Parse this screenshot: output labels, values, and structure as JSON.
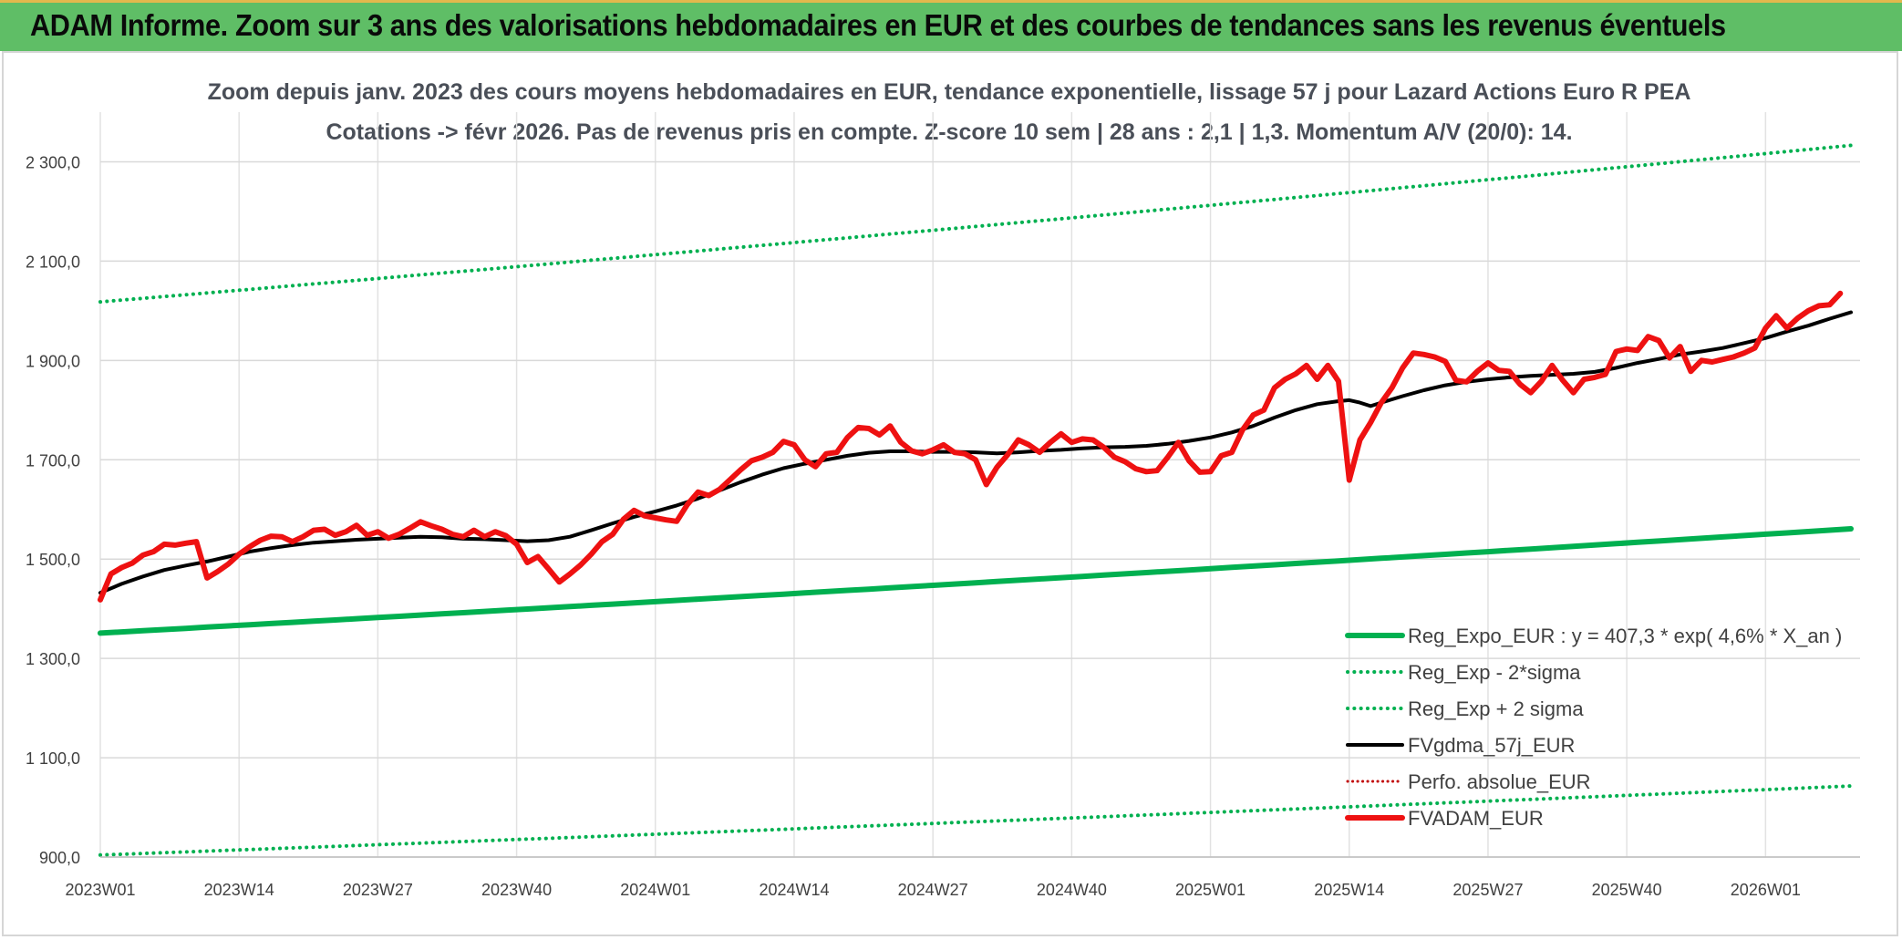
{
  "page": {
    "banner_title": "ADAM Informe. Zoom sur 3 ans des valorisations hebdomadaires en EUR et des courbes de tendances sans les revenus éventuels"
  },
  "chart_data": {
    "type": "line",
    "title_line1": "Zoom depuis janv. 2023 des cours moyens hebdomadaires en EUR, tendance exponentielle, lissage 57 j pour Lazard Actions Euro R PEA",
    "title_line2": "Cotations -> févr 2026. Pas de revenus pris en compte. Z-score 10 sem | 28 ans : 2,1 | 1,3. Momentum A/V (20/0): 14.",
    "ylim": [
      900,
      2400
    ],
    "y_ticks": [
      900,
      1100,
      1300,
      1500,
      1700,
      1900,
      2100,
      2300
    ],
    "y_tick_labels": [
      "900,0",
      "1 100,0",
      "1 300,0",
      "1 500,0",
      "1 700,0",
      "1 900,0",
      "2 100,0",
      "2 300,0"
    ],
    "x_tick_labels": [
      "2023W01",
      "2023W14",
      "2023W27",
      "2023W40",
      "2024W01",
      "2024W14",
      "2024W27",
      "2024W40",
      "2025W01",
      "2025W14",
      "2025W27",
      "2025W40",
      "2026W01"
    ],
    "x_tick_weeks": [
      0,
      13,
      26,
      39,
      52,
      65,
      78,
      91,
      104,
      117,
      130,
      143,
      156
    ],
    "x_range_weeks": [
      0,
      164
    ],
    "grid": true,
    "legend_position": "bottom-right",
    "legend": [
      {
        "label": "Reg_Expo_EUR : y = 407,3 * exp( 4,6% *  X_an )",
        "series": "reg_expo"
      },
      {
        "label": "Reg_Exp - 2*sigma",
        "series": "reg_minus"
      },
      {
        "label": "Reg_Exp + 2 sigma",
        "series": "reg_plus"
      },
      {
        "label": "FVgdma_57j_EUR",
        "series": "gdma"
      },
      {
        "label": "Perfo. absolue_EUR",
        "series": "perfo"
      },
      {
        "label": "FVADAM_EUR",
        "series": "fvadam"
      }
    ],
    "series": [
      {
        "name": "Reg_Expo_EUR : y = 407,3 * exp( 4,6% *  X_an )",
        "key": "reg_expo",
        "color": "#00b050",
        "style": "solid",
        "width": 6,
        "start": 1351,
        "end": 1561
      },
      {
        "name": "Reg_Exp - 2*sigma",
        "key": "reg_minus",
        "color": "#00b050",
        "style": "dotted",
        "width": 4,
        "start": 904,
        "end": 1043
      },
      {
        "name": "Reg_Exp + 2 sigma",
        "key": "reg_plus",
        "color": "#00b050",
        "style": "dotted",
        "width": 4,
        "start": 2018,
        "end": 2333
      },
      {
        "name": "FVgdma_57j_EUR",
        "key": "gdma",
        "color": "#000000",
        "style": "solid",
        "width": 4,
        "points": [
          [
            0,
            1432
          ],
          [
            2,
            1450
          ],
          [
            4,
            1465
          ],
          [
            6,
            1478
          ],
          [
            8,
            1487
          ],
          [
            10,
            1495
          ],
          [
            12,
            1505
          ],
          [
            14,
            1515
          ],
          [
            16,
            1522
          ],
          [
            18,
            1528
          ],
          [
            20,
            1533
          ],
          [
            22,
            1536
          ],
          [
            24,
            1539
          ],
          [
            26,
            1541
          ],
          [
            28,
            1543
          ],
          [
            30,
            1545
          ],
          [
            32,
            1544
          ],
          [
            34,
            1541
          ],
          [
            36,
            1540
          ],
          [
            38,
            1538
          ],
          [
            40,
            1536
          ],
          [
            42,
            1538
          ],
          [
            44,
            1545
          ],
          [
            46,
            1558
          ],
          [
            48,
            1572
          ],
          [
            50,
            1585
          ],
          [
            52,
            1596
          ],
          [
            54,
            1608
          ],
          [
            56,
            1622
          ],
          [
            58,
            1638
          ],
          [
            60,
            1655
          ],
          [
            62,
            1670
          ],
          [
            64,
            1683
          ],
          [
            66,
            1692
          ],
          [
            68,
            1700
          ],
          [
            70,
            1708
          ],
          [
            72,
            1714
          ],
          [
            74,
            1717
          ],
          [
            76,
            1717
          ],
          [
            78,
            1716
          ],
          [
            80,
            1716
          ],
          [
            82,
            1715
          ],
          [
            84,
            1713
          ],
          [
            86,
            1715
          ],
          [
            88,
            1718
          ],
          [
            90,
            1720
          ],
          [
            92,
            1723
          ],
          [
            94,
            1725
          ],
          [
            96,
            1726
          ],
          [
            98,
            1728
          ],
          [
            100,
            1732
          ],
          [
            102,
            1738
          ],
          [
            104,
            1745
          ],
          [
            106,
            1755
          ],
          [
            108,
            1768
          ],
          [
            110,
            1785
          ],
          [
            112,
            1800
          ],
          [
            114,
            1812
          ],
          [
            116,
            1818
          ],
          [
            117,
            1820
          ],
          [
            118,
            1815
          ],
          [
            119,
            1808
          ],
          [
            120,
            1815
          ],
          [
            122,
            1828
          ],
          [
            124,
            1840
          ],
          [
            126,
            1850
          ],
          [
            128,
            1857
          ],
          [
            130,
            1862
          ],
          [
            132,
            1866
          ],
          [
            134,
            1869
          ],
          [
            136,
            1871
          ],
          [
            138,
            1873
          ],
          [
            140,
            1877
          ],
          [
            142,
            1885
          ],
          [
            144,
            1895
          ],
          [
            146,
            1903
          ],
          [
            148,
            1912
          ],
          [
            150,
            1918
          ],
          [
            152,
            1925
          ],
          [
            154,
            1935
          ],
          [
            156,
            1945
          ],
          [
            158,
            1958
          ],
          [
            160,
            1970
          ],
          [
            162,
            1984
          ],
          [
            164,
            1997
          ]
        ]
      },
      {
        "name": "Perfo. absolue_EUR",
        "key": "perfo",
        "color": "#c00000",
        "style": "dotted",
        "width": 3,
        "points": []
      },
      {
        "name": "FVADAM_EUR",
        "key": "fvadam",
        "color": "#ee1111",
        "style": "solid",
        "width": 6,
        "points": [
          [
            0,
            1418
          ],
          [
            1,
            1470
          ],
          [
            2,
            1483
          ],
          [
            3,
            1492
          ],
          [
            4,
            1508
          ],
          [
            5,
            1515
          ],
          [
            6,
            1530
          ],
          [
            7,
            1528
          ],
          [
            8,
            1532
          ],
          [
            9,
            1535
          ],
          [
            10,
            1462
          ],
          [
            11,
            1475
          ],
          [
            12,
            1490
          ],
          [
            13,
            1510
          ],
          [
            14,
            1525
          ],
          [
            15,
            1538
          ],
          [
            16,
            1546
          ],
          [
            17,
            1545
          ],
          [
            18,
            1535
          ],
          [
            19,
            1545
          ],
          [
            20,
            1558
          ],
          [
            21,
            1560
          ],
          [
            22,
            1548
          ],
          [
            23,
            1555
          ],
          [
            24,
            1568
          ],
          [
            25,
            1548
          ],
          [
            26,
            1555
          ],
          [
            27,
            1542
          ],
          [
            28,
            1550
          ],
          [
            29,
            1562
          ],
          [
            30,
            1575
          ],
          [
            31,
            1567
          ],
          [
            32,
            1560
          ],
          [
            33,
            1550
          ],
          [
            34,
            1545
          ],
          [
            35,
            1558
          ],
          [
            36,
            1545
          ],
          [
            37,
            1555
          ],
          [
            38,
            1547
          ],
          [
            39,
            1530
          ],
          [
            40,
            1493
          ],
          [
            41,
            1505
          ],
          [
            42,
            1480
          ],
          [
            43,
            1454
          ],
          [
            44,
            1470
          ],
          [
            45,
            1488
          ],
          [
            46,
            1510
          ],
          [
            47,
            1535
          ],
          [
            48,
            1550
          ],
          [
            49,
            1580
          ],
          [
            50,
            1598
          ],
          [
            51,
            1587
          ],
          [
            52,
            1583
          ],
          [
            53,
            1579
          ],
          [
            54,
            1576
          ],
          [
            55,
            1610
          ],
          [
            56,
            1635
          ],
          [
            57,
            1628
          ],
          [
            58,
            1640
          ],
          [
            59,
            1660
          ],
          [
            60,
            1680
          ],
          [
            61,
            1698
          ],
          [
            62,
            1705
          ],
          [
            63,
            1715
          ],
          [
            64,
            1737
          ],
          [
            65,
            1730
          ],
          [
            66,
            1700
          ],
          [
            67,
            1686
          ],
          [
            68,
            1712
          ],
          [
            69,
            1715
          ],
          [
            70,
            1745
          ],
          [
            71,
            1765
          ],
          [
            72,
            1763
          ],
          [
            73,
            1750
          ],
          [
            74,
            1768
          ],
          [
            75,
            1735
          ],
          [
            76,
            1718
          ],
          [
            77,
            1712
          ],
          [
            78,
            1720
          ],
          [
            79,
            1730
          ],
          [
            80,
            1715
          ],
          [
            81,
            1712
          ],
          [
            82,
            1700
          ],
          [
            83,
            1650
          ],
          [
            84,
            1685
          ],
          [
            85,
            1710
          ],
          [
            86,
            1740
          ],
          [
            87,
            1730
          ],
          [
            88,
            1715
          ],
          [
            89,
            1735
          ],
          [
            90,
            1752
          ],
          [
            91,
            1735
          ],
          [
            92,
            1742
          ],
          [
            93,
            1740
          ],
          [
            94,
            1725
          ],
          [
            95,
            1705
          ],
          [
            96,
            1696
          ],
          [
            97,
            1682
          ],
          [
            98,
            1676
          ],
          [
            99,
            1678
          ],
          [
            100,
            1705
          ],
          [
            101,
            1735
          ],
          [
            102,
            1698
          ],
          [
            103,
            1675
          ],
          [
            104,
            1676
          ],
          [
            105,
            1708
          ],
          [
            106,
            1715
          ],
          [
            107,
            1760
          ],
          [
            108,
            1790
          ],
          [
            109,
            1800
          ],
          [
            110,
            1845
          ],
          [
            111,
            1862
          ],
          [
            112,
            1873
          ],
          [
            113,
            1890
          ],
          [
            114,
            1862
          ],
          [
            115,
            1890
          ],
          [
            116,
            1858
          ],
          [
            117,
            1659
          ],
          [
            118,
            1740
          ],
          [
            119,
            1775
          ],
          [
            120,
            1815
          ],
          [
            121,
            1845
          ],
          [
            122,
            1885
          ],
          [
            123,
            1915
          ],
          [
            124,
            1912
          ],
          [
            125,
            1907
          ],
          [
            126,
            1898
          ],
          [
            127,
            1860
          ],
          [
            128,
            1857
          ],
          [
            129,
            1878
          ],
          [
            130,
            1895
          ],
          [
            131,
            1880
          ],
          [
            132,
            1878
          ],
          [
            133,
            1852
          ],
          [
            134,
            1835
          ],
          [
            135,
            1858
          ],
          [
            136,
            1890
          ],
          [
            137,
            1860
          ],
          [
            138,
            1835
          ],
          [
            139,
            1862
          ],
          [
            140,
            1866
          ],
          [
            141,
            1872
          ],
          [
            142,
            1918
          ],
          [
            143,
            1923
          ],
          [
            144,
            1920
          ],
          [
            145,
            1948
          ],
          [
            146,
            1940
          ],
          [
            147,
            1905
          ],
          [
            148,
            1928
          ],
          [
            149,
            1878
          ],
          [
            150,
            1900
          ],
          [
            151,
            1897
          ],
          [
            152,
            1902
          ],
          [
            153,
            1907
          ],
          [
            154,
            1915
          ],
          [
            155,
            1925
          ],
          [
            156,
            1965
          ],
          [
            157,
            1990
          ],
          [
            158,
            1965
          ],
          [
            159,
            1985
          ],
          [
            160,
            2000
          ],
          [
            161,
            2010
          ],
          [
            162,
            2012
          ],
          [
            163,
            2035
          ]
        ]
      }
    ]
  }
}
